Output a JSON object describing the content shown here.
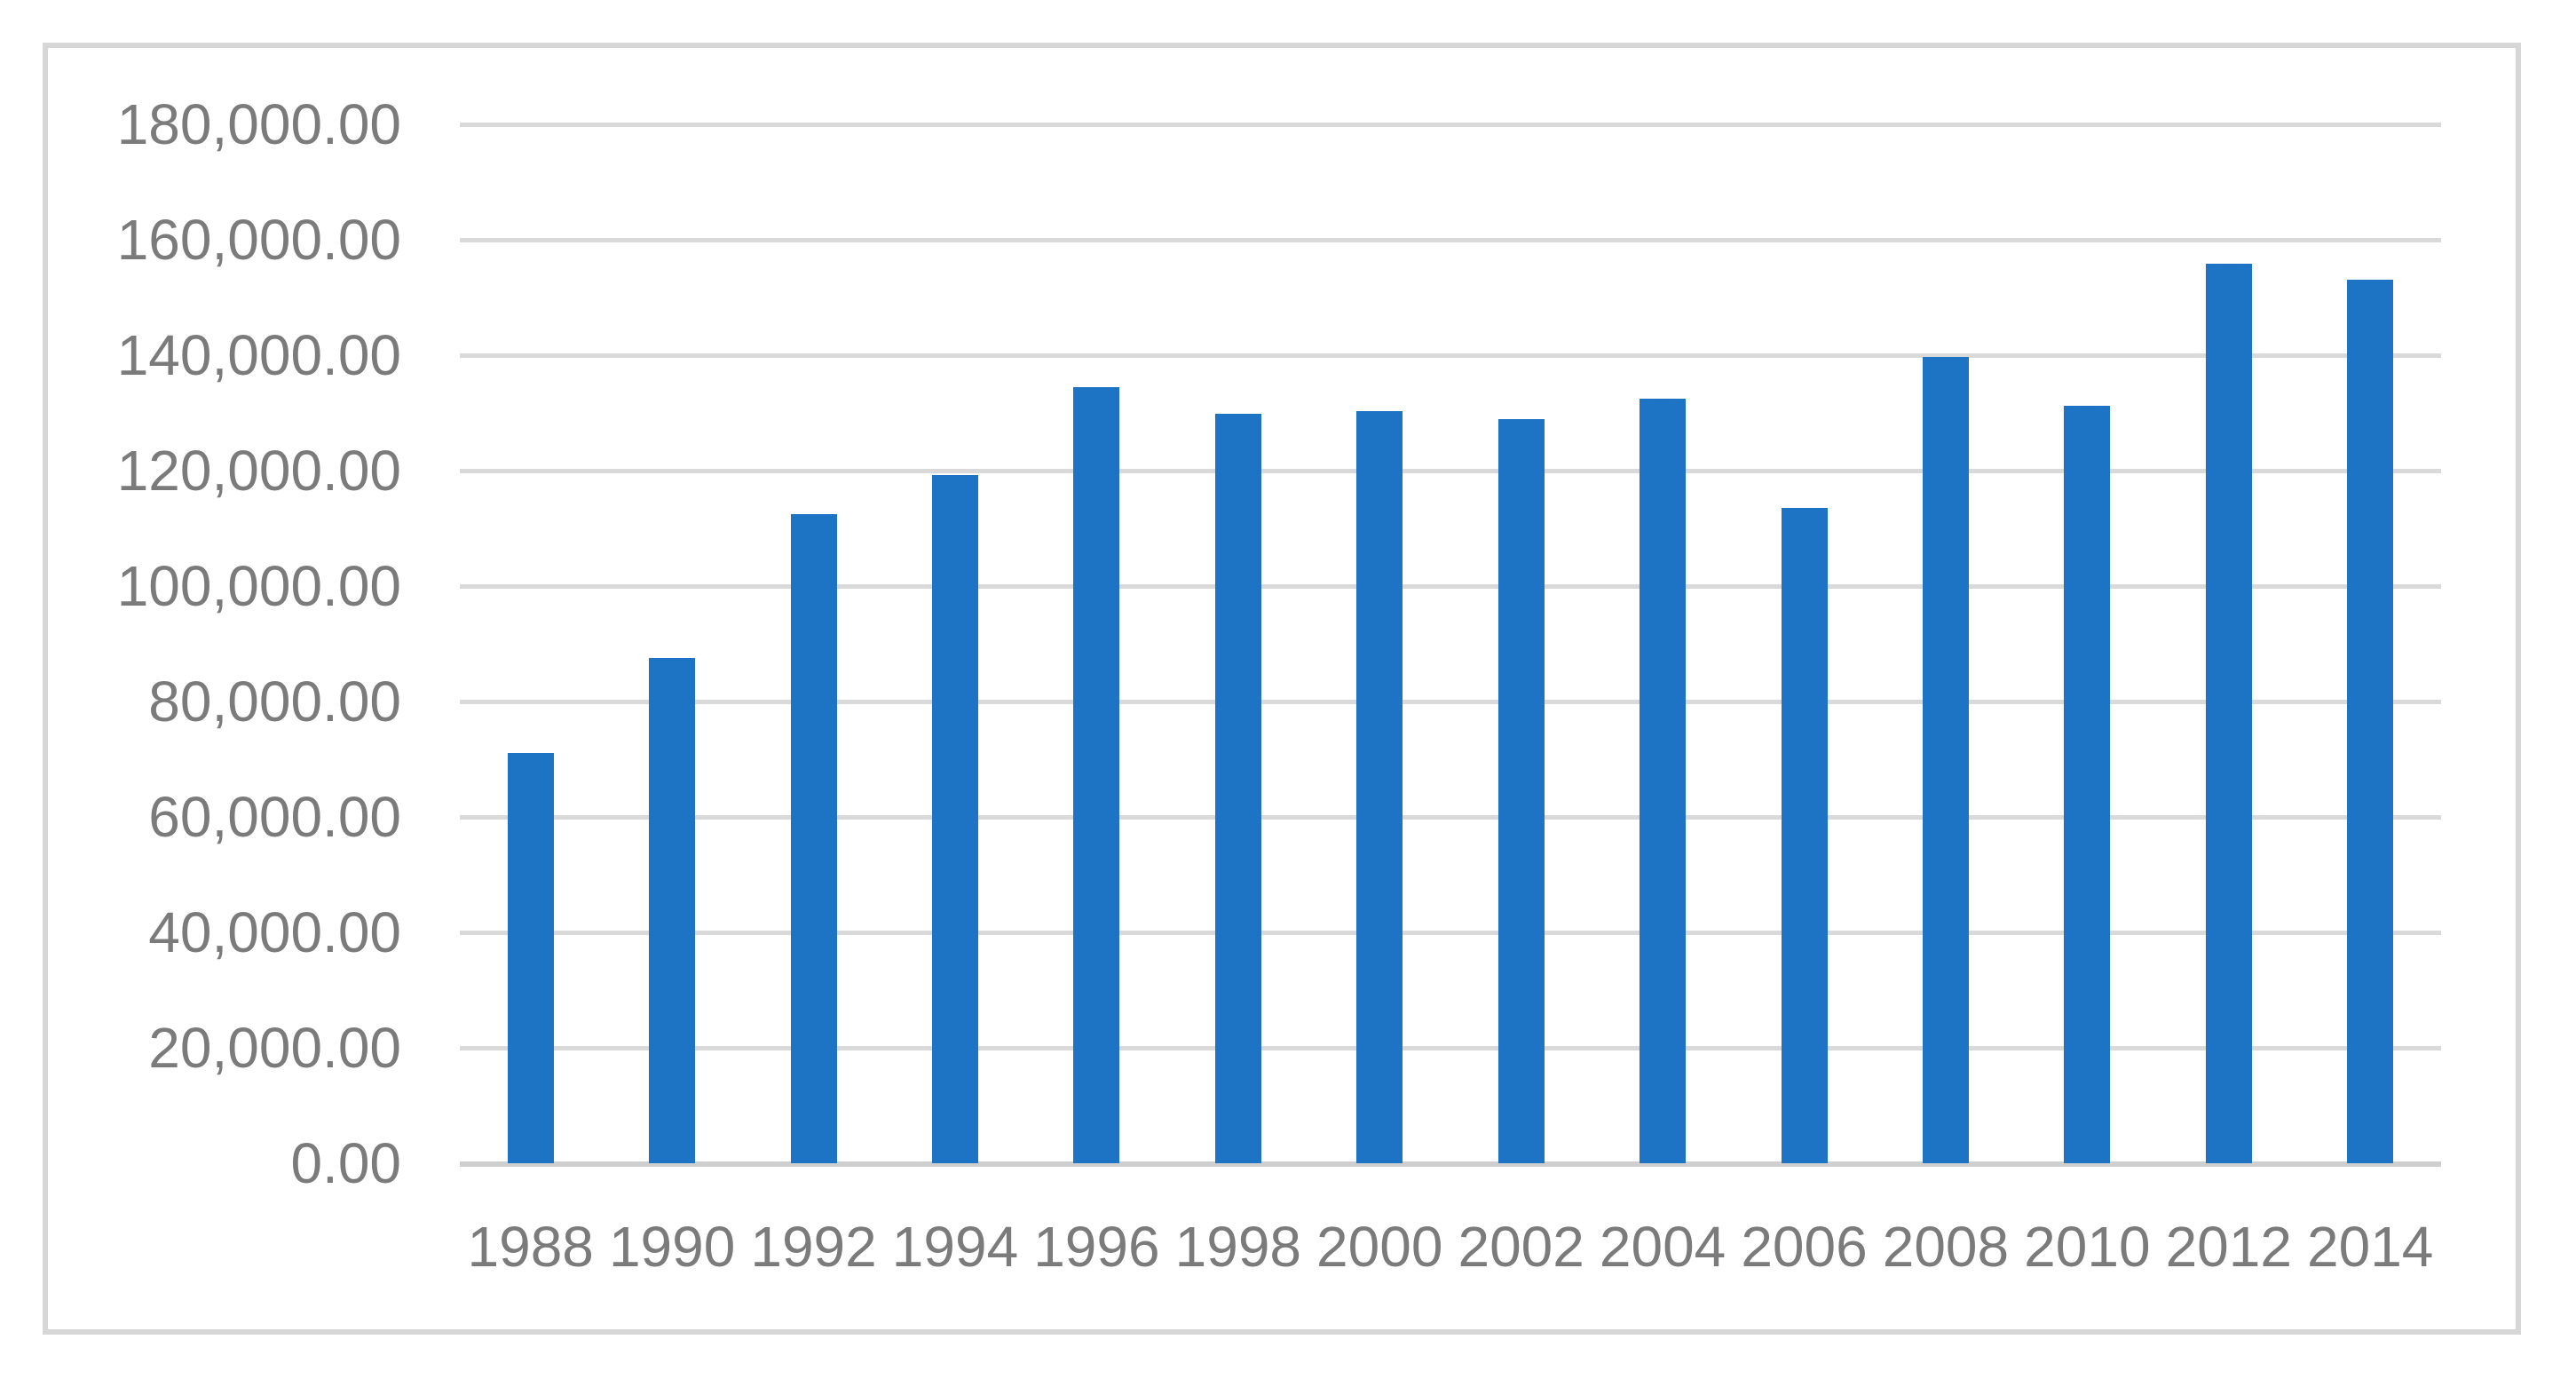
{
  "chart_data": {
    "type": "bar",
    "title": "",
    "xlabel": "",
    "ylabel": "",
    "categories": [
      "1988",
      "1990",
      "1992",
      "1994",
      "1996",
      "1998",
      "2000",
      "2002",
      "2004",
      "2006",
      "2008",
      "2010",
      "2012",
      "2014"
    ],
    "values": [
      71100,
      87600,
      112400,
      119200,
      134400,
      129900,
      130300,
      128900,
      132400,
      113500,
      139700,
      131300,
      155800,
      153100
    ],
    "ylim": [
      0,
      180000
    ],
    "ytick_step": 20000,
    "ytick_labels_top_to_bottom": [
      "180,000.00",
      "160,000.00",
      "140,000.00",
      "120,000.00",
      "100,000.00",
      "80,000.00",
      "60,000.00",
      "40,000.00",
      "20,000.00",
      "0.00"
    ],
    "number_format": "#,##0.00",
    "grid": "horizontal",
    "legend_position": "none",
    "series_name": ""
  },
  "colors": {
    "bar": "#1d73c4",
    "gridline": "#d9d9d9",
    "axis_line": "#cfcfcf",
    "tick_label": "#7b7b7b",
    "frame_border": "#d7d7d7",
    "background": "#ffffff"
  }
}
